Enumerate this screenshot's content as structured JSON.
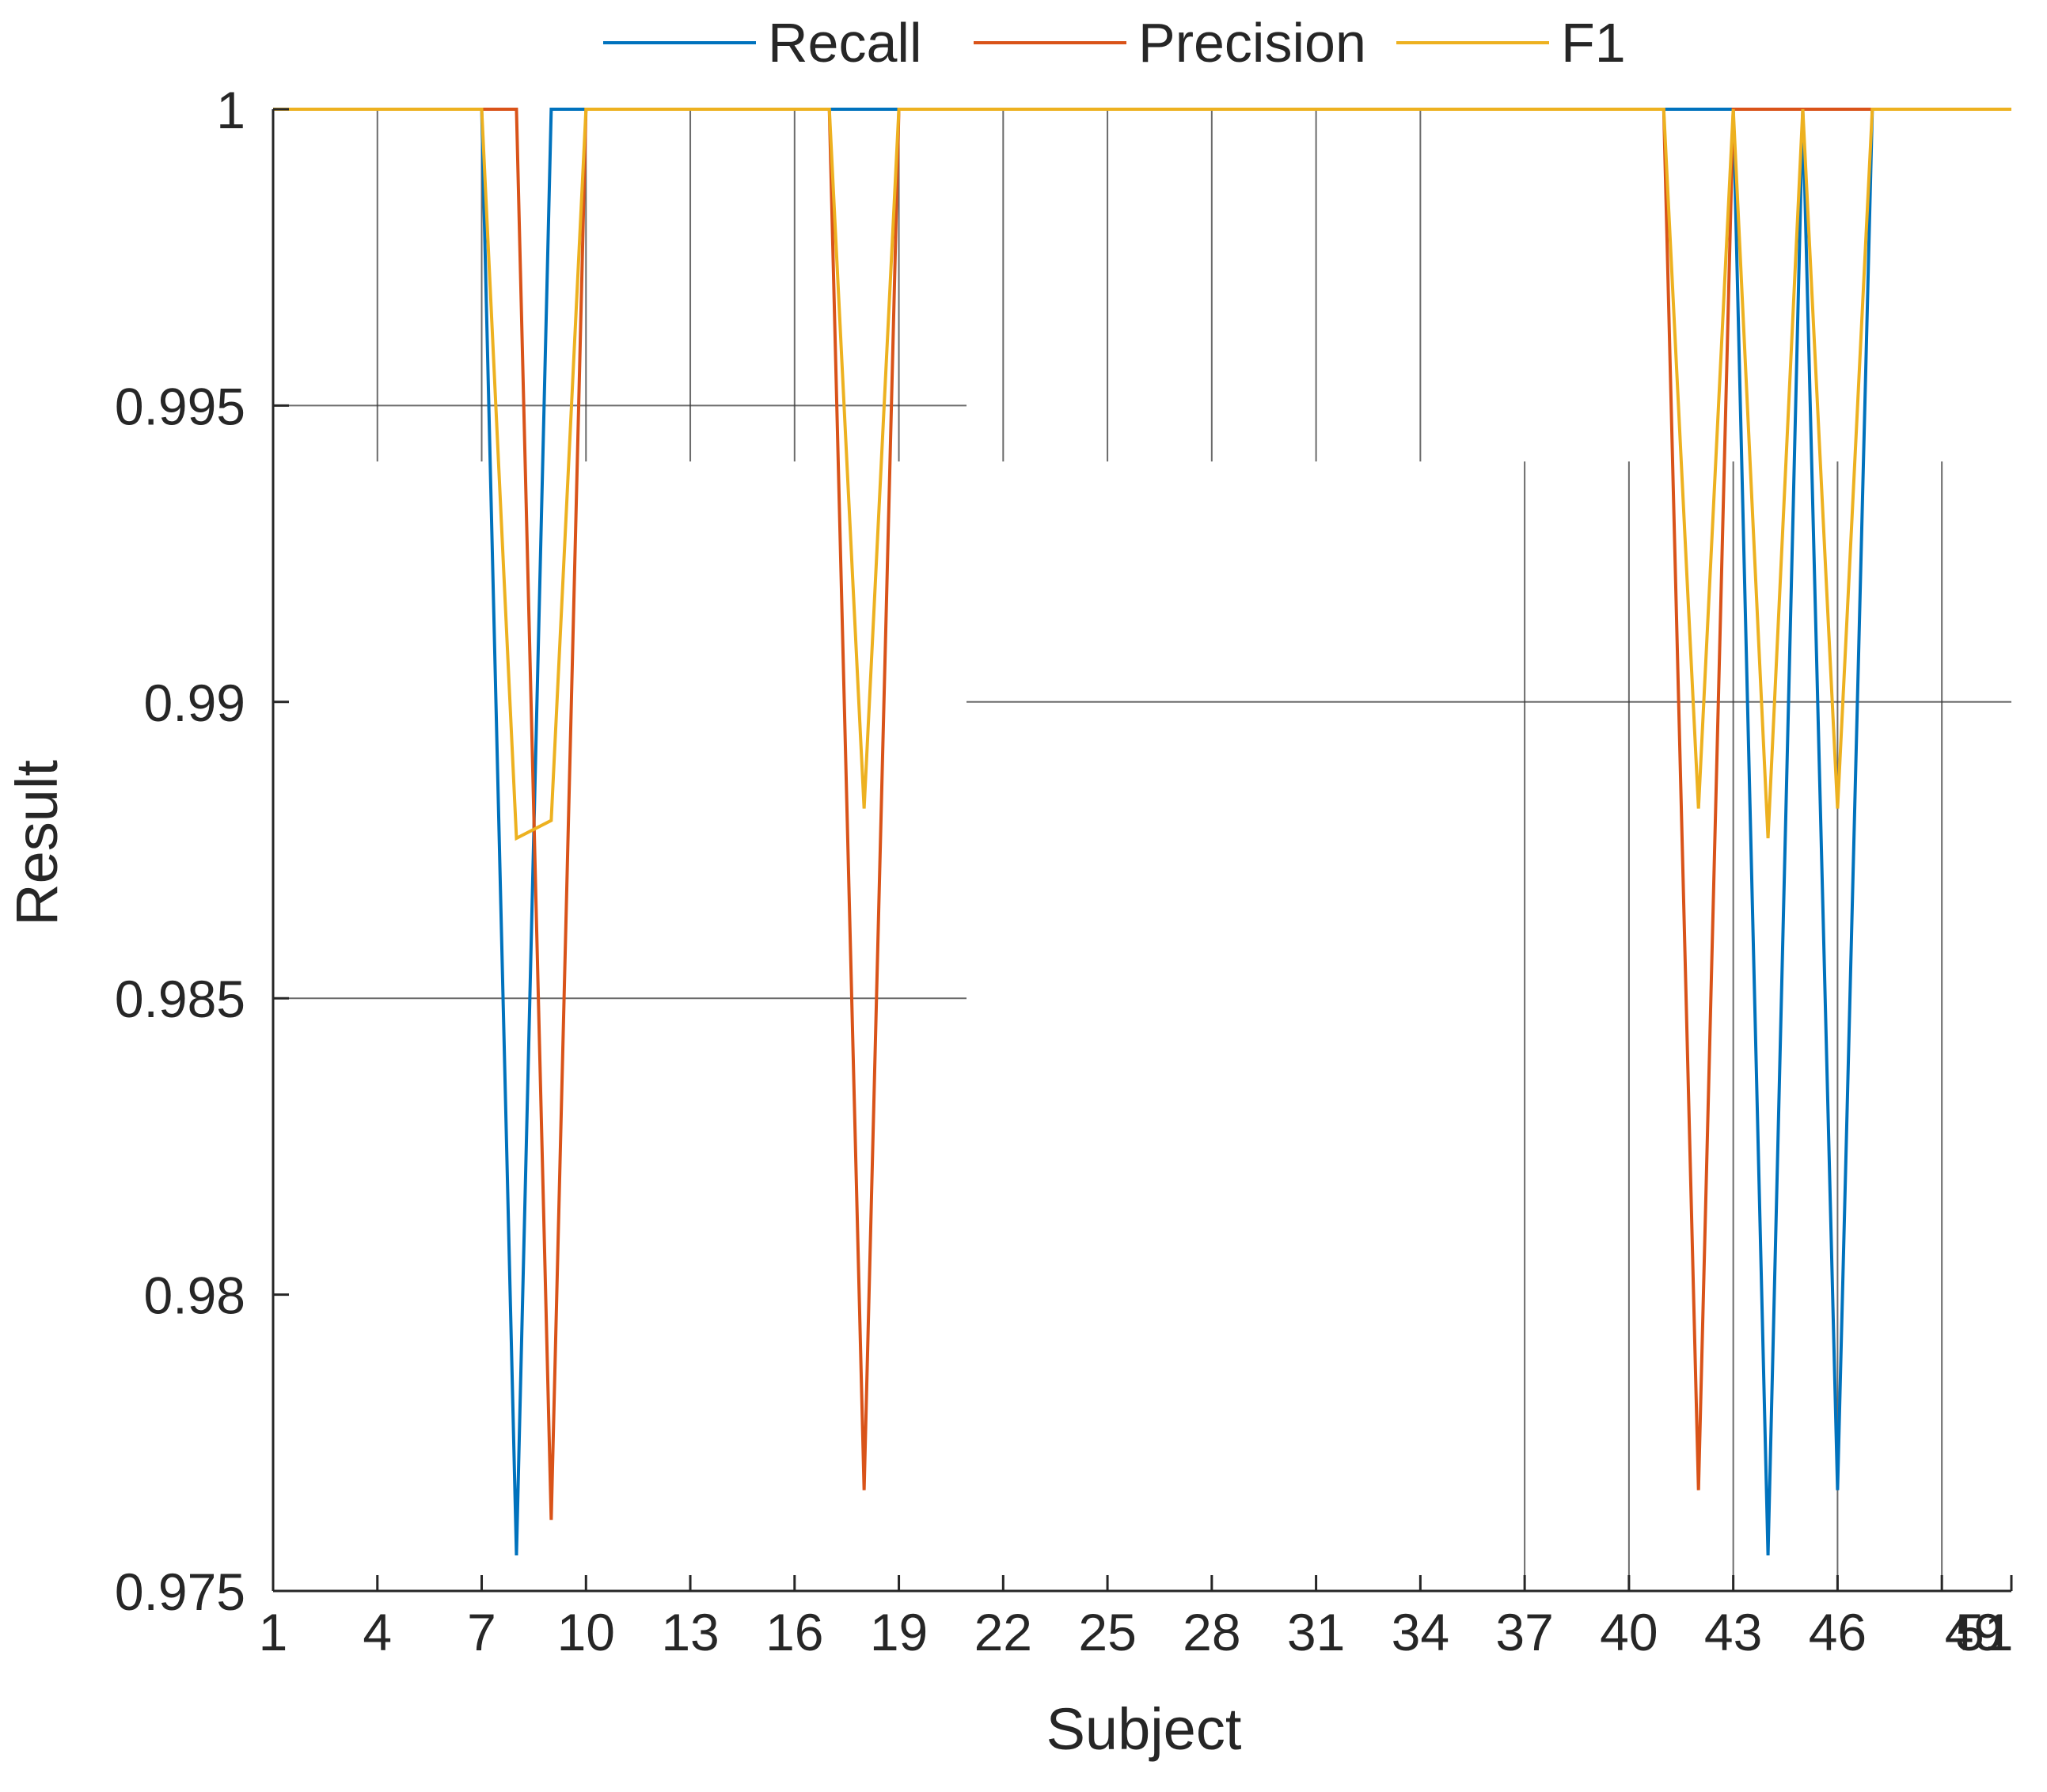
{
  "chart_data": {
    "type": "line",
    "xlabel": "Subject",
    "ylabel": "Result",
    "xlim": [
      1,
      51
    ],
    "ylim": [
      0.975,
      1
    ],
    "x_ticks": [
      1,
      4,
      7,
      10,
      13,
      16,
      19,
      22,
      25,
      28,
      31,
      34,
      37,
      40,
      43,
      46,
      49,
      51
    ],
    "x_tick_labels": [
      "1",
      "4",
      "7",
      "10",
      "13",
      "16",
      "19",
      "22",
      "25",
      "28",
      "31",
      "34",
      "37",
      "40",
      "43",
      "46",
      "49",
      "51"
    ],
    "y_ticks": [
      0.975,
      0.98,
      0.985,
      0.99,
      0.995,
      1
    ],
    "y_tick_labels": [
      "0.975",
      "0.98",
      "0.985",
      "0.99",
      "0.995",
      "1"
    ],
    "grid": "partial",
    "legend": {
      "placement": "top",
      "orientation": "horizontal"
    },
    "series": [
      {
        "name": "Recall",
        "color": "#0072BD",
        "points": [
          [
            1,
            1
          ],
          [
            7,
            1
          ],
          [
            8,
            0.9756
          ],
          [
            9,
            1
          ],
          [
            10,
            1
          ],
          [
            17,
            1
          ],
          [
            18,
            1
          ],
          [
            19,
            1
          ],
          [
            41,
            1
          ],
          [
            42,
            1
          ],
          [
            43,
            1
          ],
          [
            44,
            0.9756
          ],
          [
            45,
            1
          ],
          [
            46,
            0.9767
          ],
          [
            47,
            1
          ],
          [
            51,
            1
          ]
        ]
      },
      {
        "name": "Precision",
        "color": "#D95319",
        "points": [
          [
            1,
            1
          ],
          [
            8,
            1
          ],
          [
            9,
            0.9762
          ],
          [
            10,
            1
          ],
          [
            17,
            1
          ],
          [
            18,
            0.9767
          ],
          [
            19,
            1
          ],
          [
            41,
            1
          ],
          [
            42,
            0.9767
          ],
          [
            43,
            1
          ],
          [
            44,
            1
          ],
          [
            45,
            1
          ],
          [
            46,
            1
          ],
          [
            47,
            1
          ],
          [
            51,
            1
          ]
        ]
      },
      {
        "name": "F1",
        "color": "#EDB120",
        "points": [
          [
            1,
            1
          ],
          [
            7,
            1
          ],
          [
            8,
            0.9877
          ],
          [
            9,
            0.988
          ],
          [
            10,
            1
          ],
          [
            17,
            1
          ],
          [
            18,
            0.9882
          ],
          [
            19,
            1
          ],
          [
            41,
            1
          ],
          [
            42,
            0.9882
          ],
          [
            43,
            1
          ],
          [
            44,
            0.9877
          ],
          [
            45,
            1
          ],
          [
            46,
            0.9882
          ],
          [
            47,
            1
          ],
          [
            51,
            1
          ]
        ]
      }
    ]
  }
}
